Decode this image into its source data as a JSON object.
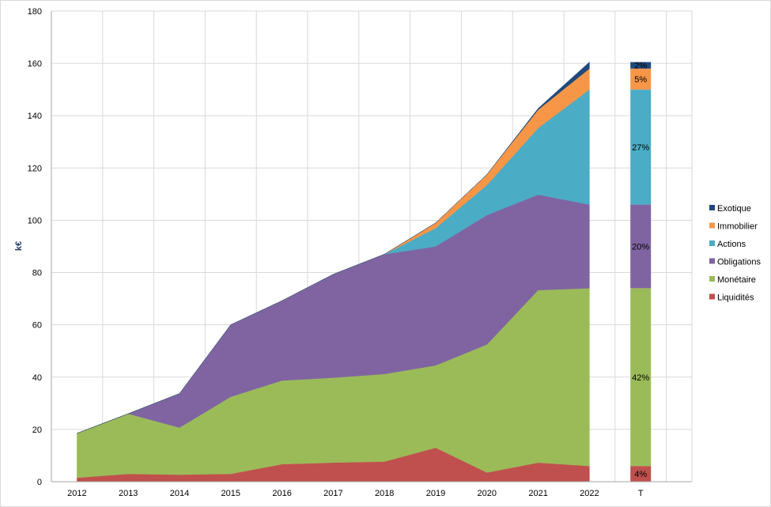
{
  "chart_data": {
    "type": "area",
    "stacked": true,
    "title": "",
    "xlabel": "",
    "ylabel": "k€",
    "ylim": [
      0,
      180
    ],
    "ytick_step": 20,
    "categories": [
      "2012",
      "2013",
      "2014",
      "2015",
      "2016",
      "2017",
      "2018",
      "2019",
      "2020",
      "2021",
      "2022"
    ],
    "series": [
      {
        "name": "Liquidités",
        "color": "#c0504d",
        "values": [
          1.5,
          3,
          2.7,
          3,
          6.7,
          7.3,
          7.7,
          13,
          3.5,
          7.3,
          6
        ]
      },
      {
        "name": "Monétaire",
        "color": "#9bbb59",
        "values": [
          17,
          23,
          18,
          29.5,
          32,
          32.5,
          33.5,
          31.5,
          49,
          66,
          68
        ]
      },
      {
        "name": "Obligations",
        "color": "#8064a2",
        "values": [
          0,
          0,
          13,
          27.5,
          30.5,
          39.5,
          45.8,
          45.5,
          49.5,
          36.5,
          32
        ]
      },
      {
        "name": "Actions",
        "color": "#4bacc6",
        "values": [
          0,
          0,
          0,
          0,
          0,
          0,
          0,
          7,
          11.5,
          25.5,
          44
        ]
      },
      {
        "name": "Immobilier",
        "color": "#f79646",
        "values": [
          0,
          0,
          0,
          0,
          0,
          0,
          0,
          2,
          4,
          7,
          8
        ]
      },
      {
        "name": "Exotique",
        "color": "#1f497d",
        "values": [
          0,
          0,
          0,
          0,
          0,
          0,
          0,
          0,
          0,
          0.5,
          2.5
        ]
      }
    ],
    "total_bar": {
      "category": "T",
      "labels": [
        "4%",
        "42%",
        "20%",
        "27%",
        "5%",
        "2%"
      ]
    },
    "legend_position": "right",
    "grid": true
  }
}
